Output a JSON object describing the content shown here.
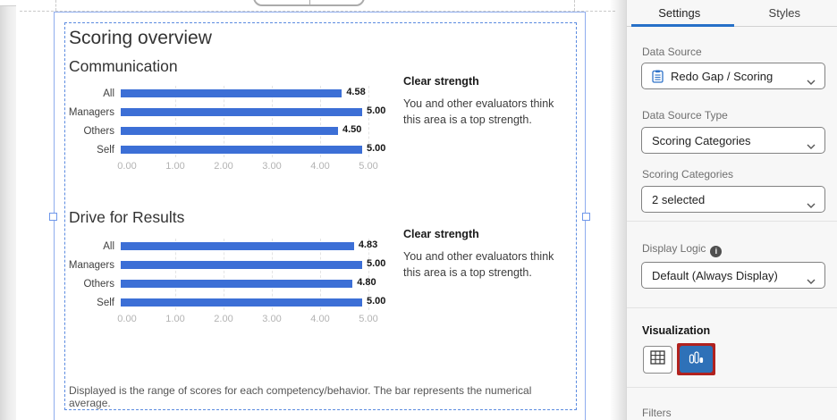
{
  "block": {
    "title": "Scoring overview",
    "footnote": "Displayed is the range of scores for each competency/behavior. The bar represents the numerical average."
  },
  "chart_data": [
    {
      "type": "bar",
      "orientation": "horizontal",
      "title": "Communication",
      "categories": [
        "All",
        "Managers",
        "Others",
        "Self"
      ],
      "values": [
        4.58,
        5.0,
        4.5,
        5.0
      ],
      "value_labels": [
        "4.58",
        "5.00",
        "4.50",
        "5.00"
      ],
      "xticks": [
        "0.00",
        "1.00",
        "2.00",
        "3.00",
        "4.00",
        "5.00"
      ],
      "xlim": [
        0,
        5
      ],
      "grid": true,
      "bar_color": "#3c6fd6",
      "annotation": {
        "heading": "Clear strength",
        "body": "You and other evaluators think this area is a top strength."
      }
    },
    {
      "type": "bar",
      "orientation": "horizontal",
      "title": "Drive for Results",
      "categories": [
        "All",
        "Managers",
        "Others",
        "Self"
      ],
      "values": [
        4.83,
        5.0,
        4.8,
        5.0
      ],
      "value_labels": [
        "4.83",
        "5.00",
        "4.80",
        "5.00"
      ],
      "xticks": [
        "0.00",
        "1.00",
        "2.00",
        "3.00",
        "4.00",
        "5.00"
      ],
      "xlim": [
        0,
        5
      ],
      "grid": true,
      "bar_color": "#3c6fd6",
      "annotation": {
        "heading": "Clear strength",
        "body": "You and other evaluators think this area is a top strength."
      }
    }
  ],
  "panel": {
    "tabs": [
      {
        "label": "Settings",
        "active": true
      },
      {
        "label": "Styles",
        "active": false
      }
    ],
    "data_source": {
      "label": "Data Source",
      "value": "Redo Gap / Scoring",
      "icon": "survey-icon"
    },
    "data_source_type": {
      "label": "Data Source Type",
      "value": "Scoring Categories"
    },
    "scoring_categories": {
      "label": "Scoring Categories",
      "value": "2 selected"
    },
    "display_logic": {
      "label": "Display Logic",
      "value": "Default (Always Display)",
      "icon": "info-icon",
      "info_text": "i"
    },
    "visualization": {
      "label": "Visualization",
      "options": [
        {
          "name": "table",
          "icon": "table-icon",
          "selected": false
        },
        {
          "name": "bar-chart",
          "icon": "bar-chart-icon",
          "selected": true,
          "highlighted": true
        }
      ]
    },
    "filters": {
      "label": "Filters"
    }
  },
  "colors": {
    "bar_blue": "#3c6fd6",
    "selection_blue": "#8fadee",
    "tab_accent": "#2770c8",
    "viz_active_bg": "#2e71b8",
    "viz_highlight_red": "#b1221f"
  }
}
